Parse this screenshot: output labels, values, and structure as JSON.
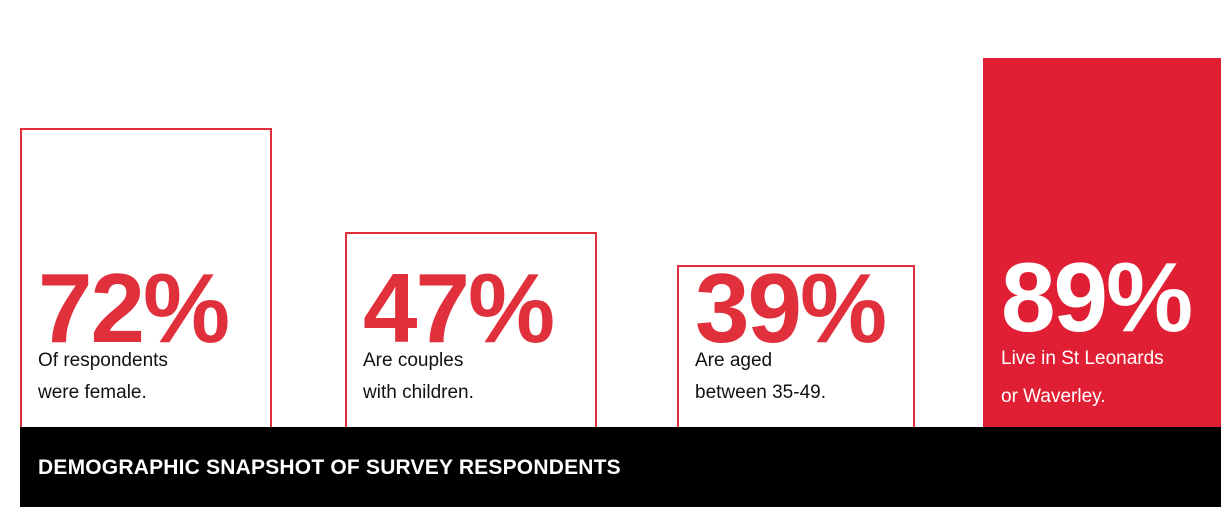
{
  "chart_data": {
    "type": "bar",
    "title": "DEMOGRAPHIC SNAPSHOT OF SURVEY RESPONDENTS",
    "xlabel": "",
    "ylabel": "",
    "ylim": [
      0,
      100
    ],
    "categories": [
      "Of respondents were female.",
      "Are couples with children.",
      "Are aged between 35-49.",
      "Live in St Leonards or Waverley."
    ],
    "values": [
      72,
      47,
      39,
      89
    ],
    "labels": [
      "72%",
      "47%",
      "39%",
      "89%"
    ],
    "captions": [
      [
        "Of respondents",
        "were female."
      ],
      [
        "Are couples",
        "with children."
      ],
      [
        "Are aged",
        "between 35-49."
      ],
      [
        "Live in St Leonards",
        "or Waverley."
      ]
    ],
    "highlight_index": 3,
    "colors": {
      "accent": "#e0303c",
      "highlight_fill": "#e01f34",
      "footer_bg": "#000000"
    }
  }
}
